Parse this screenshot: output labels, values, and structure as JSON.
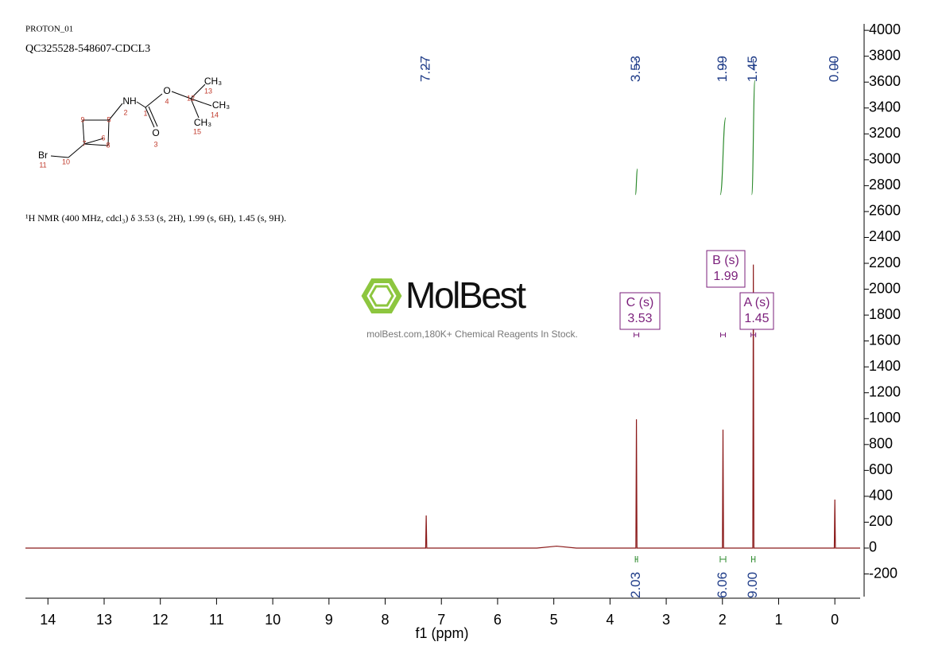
{
  "header": {
    "experiment": "PROTON_01",
    "sample": "QC325528-548607-CDCL3",
    "description": "¹H NMR (400 MHz, cdcl₃) δ 3.53 (s, 2H), 1.99 (s, 6H), 1.45 (s, 9H)."
  },
  "watermark": {
    "brand": "MolBest",
    "tagline": "molBest.com,180K+ Chemical Reagents In Stock."
  },
  "structure": {
    "atoms": [
      {
        "label": "NH",
        "number": 2
      },
      {
        "number": 1
      },
      {
        "label": "O",
        "number": 4
      },
      {
        "label": "O",
        "number": 3
      },
      {
        "number": 12
      },
      {
        "label": "CH₃",
        "number": 13
      },
      {
        "label": "CH₃",
        "number": 14
      },
      {
        "label": "CH₃",
        "number": 15
      },
      {
        "number": 5
      },
      {
        "number": 9
      },
      {
        "number": 6
      },
      {
        "number": 7
      },
      {
        "number": 8
      },
      {
        "label": "Br",
        "number": 11
      },
      {
        "number": 10
      }
    ]
  },
  "chart_data": {
    "type": "line",
    "xlabel": "f1 (ppm)",
    "x": [
      14.4,
      7.28,
      7.27,
      7.26,
      5.3,
      4.95,
      4.6,
      3.54,
      3.53,
      3.52,
      2.0,
      1.99,
      1.98,
      1.46,
      1.45,
      1.44,
      0.01,
      0.0,
      -0.01,
      -0.45
    ],
    "series": [
      {
        "name": "spectrum",
        "color": "#8b1a1a",
        "values": [
          0,
          0,
          252,
          0,
          0,
          15,
          0,
          0,
          995,
          0,
          0,
          915,
          0,
          0,
          2190,
          0,
          0,
          375,
          0,
          0
        ]
      }
    ],
    "xlim": [
      14.4,
      -0.45
    ],
    "xticks": [
      14,
      13,
      12,
      11,
      10,
      9,
      8,
      7,
      6,
      5,
      4,
      3,
      2,
      1,
      0
    ],
    "ylim": [
      -375,
      4050
    ],
    "yticks": [
      -200,
      0,
      200,
      400,
      600,
      800,
      1000,
      1200,
      1400,
      1600,
      1800,
      2000,
      2200,
      2400,
      2600,
      2800,
      3000,
      3200,
      3400,
      3600,
      3800,
      4000
    ],
    "peak_labels": [
      7.27,
      3.53,
      1.99,
      1.45,
      {
        "value": 0,
        "label": "0.00"
      }
    ],
    "integrals": {
      "color": "#2e8b2e",
      "values": [
        2.03,
        6.06,
        9.0
      ],
      "value_labels": [
        "2.03",
        "6.06",
        "9.00"
      ],
      "ranges": [
        [
          3.55,
          3.51
        ],
        [
          2.04,
          1.94
        ],
        [
          1.48,
          1.42
        ]
      ]
    },
    "multiplets": [
      {
        "name": "C (s)",
        "shift": 3.53
      },
      {
        "name": "B (s)",
        "shift": 1.99
      },
      {
        "name": "A (s)",
        "shift": 1.45
      }
    ]
  }
}
